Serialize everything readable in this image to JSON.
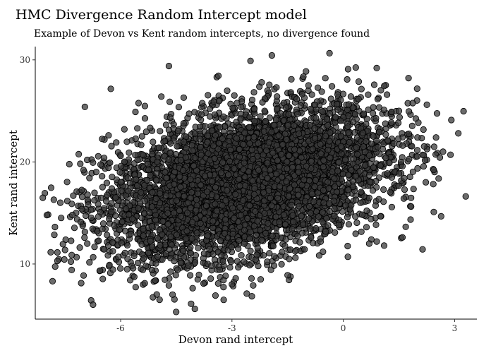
{
  "chart_data": {
    "type": "scatter",
    "title": "HMC Divergence Random Intercept model",
    "subtitle": "Example of Devon vs Kent random intercepts, no divergence found",
    "xlabel": "Devon rand intercept",
    "ylabel": "Kent rand intercept",
    "xlim": [
      -8.3,
      3.6
    ],
    "ylim": [
      4.6,
      31.3
    ],
    "x_ticks": [
      -6,
      -3,
      0,
      3
    ],
    "y_ticks": [
      10,
      20,
      30
    ],
    "grid": false,
    "point_color": "#3a3a3a",
    "n_background_points": 6000,
    "cluster": {
      "x_mean": -2.6,
      "y_mean": 18.0,
      "x_sd": 1.85,
      "y_sd": 3.6,
      "correlation": 0.38
    },
    "series": [
      {
        "x": [
          -7.8,
          -4.7,
          -2.5,
          3.1,
          2.5,
          2.0,
          1.7,
          1.6,
          1.2,
          0.9,
          -5.6,
          -4.3,
          -4.0,
          -1.4,
          -2.2,
          -1.8,
          -6.9,
          -6.0,
          -7.0,
          -7.2,
          -7.3,
          -4.7,
          -4.6,
          -2.6,
          -4.1,
          -3.0,
          -1.5,
          -6.3,
          -5.0,
          0.7,
          0.9,
          1.1,
          -5.9,
          -6.5,
          1.3,
          1.5
        ],
        "y": [
          16.3,
          29.4,
          29.9,
          22.8,
          22.4,
          22.4,
          21.8,
          21.6,
          22.1,
          29.2,
          24.9,
          26.3,
          5.6,
          28.1,
          27.8,
          27.3,
          20.2,
          20.6,
          19.2,
          15.0,
          14.8,
          7.9,
          7.0,
          7.1,
          6.1,
          8.0,
          8.9,
          9.9,
          10.7,
          12.0,
          12.2,
          11.8,
          23.2,
          18.6,
          24.9,
          25.0
        ]
      }
    ]
  }
}
